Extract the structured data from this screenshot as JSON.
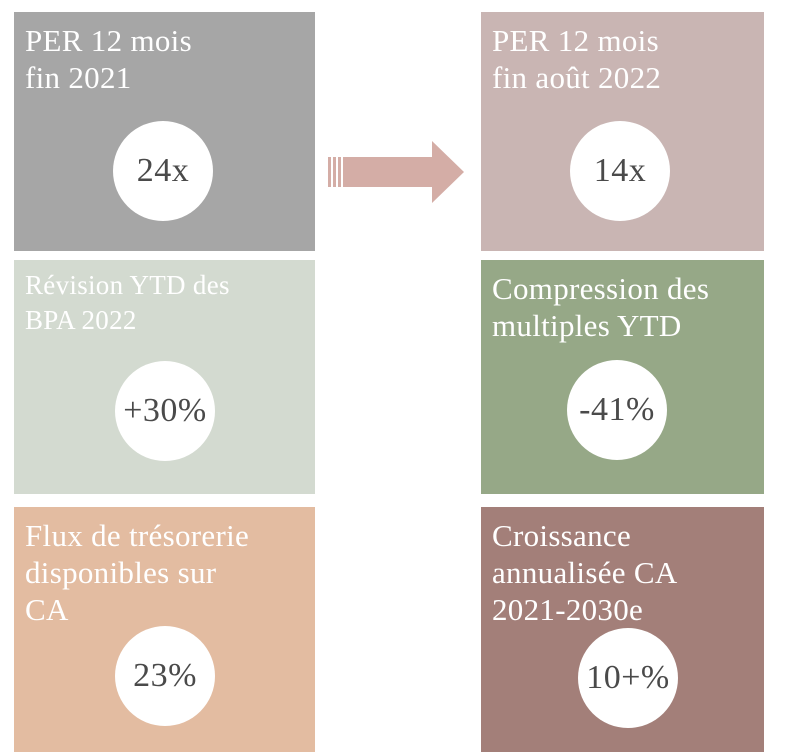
{
  "tiles": {
    "per_2021": {
      "title": "PER 12 mois\nfin 2021",
      "value": "24x",
      "color": "#a6a6a6"
    },
    "per_2022": {
      "title": "PER 12 mois\nfin août 2022",
      "value": "14x",
      "color": "#c9b5b3"
    },
    "bpa_revision": {
      "title": "Révision YTD des\nBPA 2022",
      "value": "+30%",
      "color": "#d3dad0"
    },
    "compression": {
      "title": "Compression des\nmultiples YTD",
      "value": "-41%",
      "color": "#96a887"
    },
    "free_cash_flow": {
      "title": "Flux de trésorerie\ndisponibles sur\nCA",
      "value": "23%",
      "color": "#e3bca1"
    },
    "growth": {
      "title": "Croissance\nannualisée CA\n2021-2030e",
      "value": "10+%",
      "color": "#a37f79"
    }
  },
  "arrow": {
    "color": "#d4ada6"
  }
}
